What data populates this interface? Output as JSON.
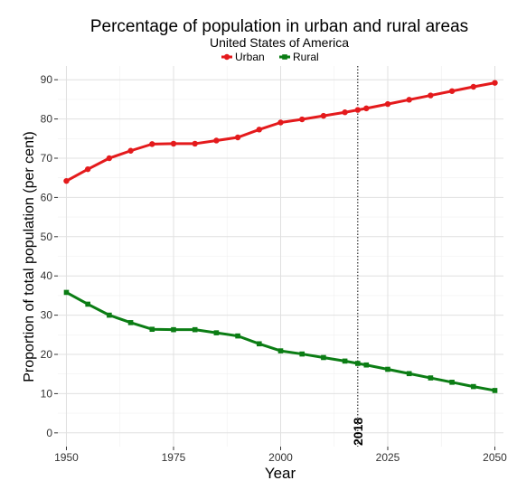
{
  "chart_data": {
    "type": "line",
    "title": "Percentage of population in urban and rural areas",
    "subtitle": "United States of America",
    "xlabel": "Year",
    "ylabel": "Proportion of total population (per cent)",
    "xlim": [
      1948,
      2052
    ],
    "ylim": [
      -3.5,
      93.5
    ],
    "x_ticks": [
      1950,
      1975,
      2000,
      2025,
      2050
    ],
    "y_ticks": [
      0,
      10,
      20,
      30,
      40,
      50,
      60,
      70,
      80,
      90
    ],
    "x_tick_labels": [
      "1950",
      "1975",
      "2000",
      "2025",
      "2050"
    ],
    "y_tick_labels": [
      "0",
      "10",
      "20",
      "30",
      "40",
      "50",
      "60",
      "70",
      "80",
      "90"
    ],
    "grid": true,
    "legend_position": "top",
    "x": [
      1950,
      1955,
      1960,
      1965,
      1970,
      1975,
      1980,
      1985,
      1990,
      1995,
      2000,
      2005,
      2010,
      2015,
      2018,
      2020,
      2025,
      2030,
      2035,
      2040,
      2045,
      2050
    ],
    "series": [
      {
        "name": "Urban",
        "color": "#e41a1c",
        "marker": "circle",
        "values": [
          64.2,
          67.2,
          70.0,
          71.9,
          73.6,
          73.7,
          73.7,
          74.5,
          75.3,
          77.3,
          79.1,
          79.9,
          80.8,
          81.7,
          82.3,
          82.7,
          83.8,
          84.9,
          86.0,
          87.1,
          88.2,
          89.2
        ]
      },
      {
        "name": "Rural",
        "color": "#0b7d14",
        "marker": "square",
        "values": [
          35.8,
          32.8,
          30.0,
          28.1,
          26.4,
          26.3,
          26.3,
          25.5,
          24.7,
          22.7,
          20.9,
          20.1,
          19.2,
          18.3,
          17.7,
          17.3,
          16.2,
          15.1,
          14.0,
          12.9,
          11.8,
          10.8
        ]
      }
    ],
    "annotations": [
      {
        "type": "vline",
        "x": 2018,
        "label": "2018",
        "color": "#000000",
        "style": "dotted"
      }
    ]
  }
}
